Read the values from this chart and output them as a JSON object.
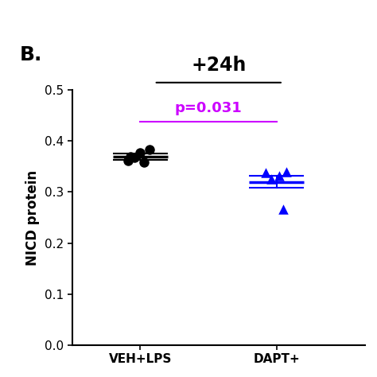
{
  "title": "B.",
  "subtitle": "+24h",
  "ylabel": "NICD protein",
  "xlabel_groups": [
    "VEH+LPS",
    "DAPT+"
  ],
  "veh_lps_data": [
    0.37,
    0.378,
    0.383,
    0.368,
    0.362,
    0.358
  ],
  "dapt_lps_data": [
    0.338,
    0.332,
    0.34,
    0.325,
    0.267
  ],
  "veh_mean": 0.37,
  "veh_sem": 0.006,
  "dapt_mean": 0.32,
  "dapt_sem": 0.012,
  "ylim": [
    0.0,
    0.5
  ],
  "yticks": [
    0.0,
    0.1,
    0.2,
    0.3,
    0.4,
    0.5
  ],
  "pvalue_text": "p=0.031",
  "pvalue_color": "#CC00FF",
  "veh_color": "#000000",
  "dapt_color": "#0000FF",
  "bg_color": "#FFFFFF",
  "marker_size": 9,
  "title_fontsize": 18,
  "subtitle_fontsize": 17,
  "label_fontsize": 12,
  "tick_fontsize": 11,
  "pvalue_fontsize": 13
}
